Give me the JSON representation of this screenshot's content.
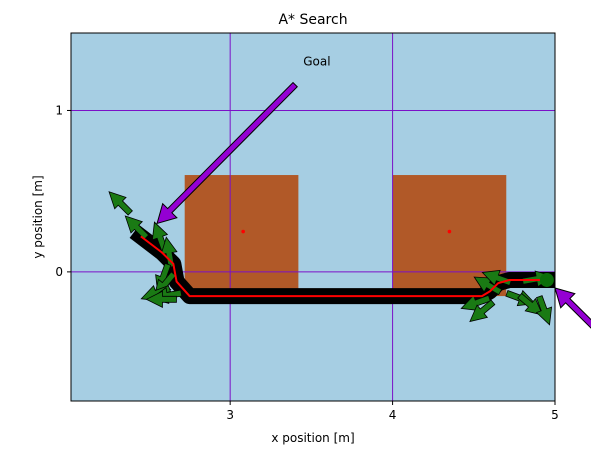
{
  "chart_data": {
    "type": "scatter",
    "title": "A* Search",
    "xlabel": "x position [m]",
    "ylabel": "y position [m]",
    "xlim": [
      2.02,
      5.0
    ],
    "ylim": [
      -0.8,
      1.48
    ],
    "xticks": [
      3,
      4,
      5
    ],
    "yticks": [
      0,
      1
    ],
    "grid": true,
    "colors": {
      "background": "#a6cee3",
      "obstacle": "#b15928",
      "grid": "#7b10c8",
      "path": "#ff0000",
      "robot": "#000000",
      "arrow_fill": "#1a7a14",
      "annotation_arrow": "#9400d3",
      "start_marker": "#0a6e0a"
    },
    "obstacles": [
      {
        "x": [
          2.72,
          3.42
        ],
        "y": [
          -0.15,
          0.6
        ],
        "center": [
          3.08,
          0.25
        ]
      },
      {
        "x": [
          4.0,
          4.7
        ],
        "y": [
          -0.15,
          0.6
        ],
        "center": [
          4.35,
          0.25
        ]
      }
    ],
    "path": {
      "x": [
        2.45,
        2.58,
        2.65,
        2.67,
        2.75,
        4.55,
        4.6,
        4.65,
        4.72,
        4.97
      ],
      "y": [
        0.22,
        0.12,
        0.05,
        -0.06,
        -0.15,
        -0.15,
        -0.12,
        -0.07,
        -0.05,
        -0.05
      ]
    },
    "headings": [
      {
        "x": 2.35,
        "y": 0.4,
        "deg": 135
      },
      {
        "x": 2.45,
        "y": 0.25,
        "deg": 135
      },
      {
        "x": 2.58,
        "y": 0.18,
        "deg": 110
      },
      {
        "x": 2.63,
        "y": 0.08,
        "deg": 100
      },
      {
        "x": 2.6,
        "y": 0.0,
        "deg": 250
      },
      {
        "x": 2.62,
        "y": -0.05,
        "deg": 230
      },
      {
        "x": 2.58,
        "y": -0.12,
        "deg": 200
      },
      {
        "x": 2.65,
        "y": -0.14,
        "deg": 190
      },
      {
        "x": 2.62,
        "y": -0.17,
        "deg": 180
      },
      {
        "x": 4.55,
        "y": -0.18,
        "deg": 200
      },
      {
        "x": 4.58,
        "y": -0.22,
        "deg": 220
      },
      {
        "x": 4.62,
        "y": -0.1,
        "deg": 150
      },
      {
        "x": 4.68,
        "y": -0.05,
        "deg": 160
      },
      {
        "x": 4.75,
        "y": -0.15,
        "deg": 340
      },
      {
        "x": 4.82,
        "y": -0.18,
        "deg": 320
      },
      {
        "x": 4.92,
        "y": -0.2,
        "deg": 290
      },
      {
        "x": 4.85,
        "y": -0.05,
        "deg": 10
      }
    ],
    "start": {
      "x": 4.95,
      "y": -0.05
    },
    "annotations": [
      {
        "text": "Goal",
        "text_x": 3.45,
        "text_y": 1.28,
        "from_x": 3.4,
        "from_y": 1.16,
        "to_x": 2.55,
        "to_y": 0.3
      },
      {
        "text": "",
        "from_x": 5.25,
        "from_y": -0.35,
        "to_x": 5.0,
        "to_y": -0.1
      }
    ]
  }
}
